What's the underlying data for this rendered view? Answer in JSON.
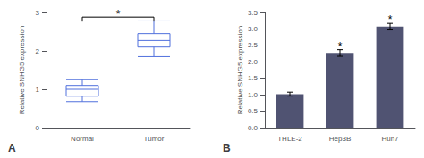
{
  "chart_data": [
    {
      "type": "box",
      "label": "A",
      "ylabel": "Relative SNHG5 expression",
      "categories": [
        "Normal",
        "Tumor"
      ],
      "boxes": [
        {
          "whisker_low": 0.68,
          "q1": 0.82,
          "median": 1.0,
          "q3": 1.1,
          "whisker_high": 1.25
        },
        {
          "whisker_low": 1.85,
          "q1": 2.1,
          "median": 2.27,
          "q3": 2.45,
          "whisker_high": 2.78
        }
      ],
      "annotations": [
        {
          "text": "*",
          "from": "Normal",
          "to": "Tumor",
          "y": 2.88
        }
      ],
      "ylim": [
        0,
        3
      ],
      "yticks": [
        0,
        1,
        2,
        3
      ],
      "grid": false
    },
    {
      "type": "bar",
      "label": "B",
      "ylabel": "Relative SNHG5 expression",
      "categories": [
        "THLE-2",
        "Hep3B",
        "Huh7"
      ],
      "values": [
        1.02,
        2.27,
        3.07
      ],
      "errors": [
        0.06,
        0.1,
        0.1
      ],
      "annotations": [
        {
          "text": "*",
          "category": "Hep3B"
        },
        {
          "text": "*",
          "category": "Huh7"
        }
      ],
      "ylim": [
        0,
        3.5
      ],
      "yticks": [
        {
          "value": 0,
          "label": "0.0"
        },
        0.5,
        {
          "value": 1,
          "label": "1.0"
        },
        1.5,
        {
          "value": 2,
          "label": "2.0"
        },
        2.5,
        {
          "value": 3,
          "label": "3.0"
        },
        3.5
      ],
      "grid": false
    }
  ]
}
